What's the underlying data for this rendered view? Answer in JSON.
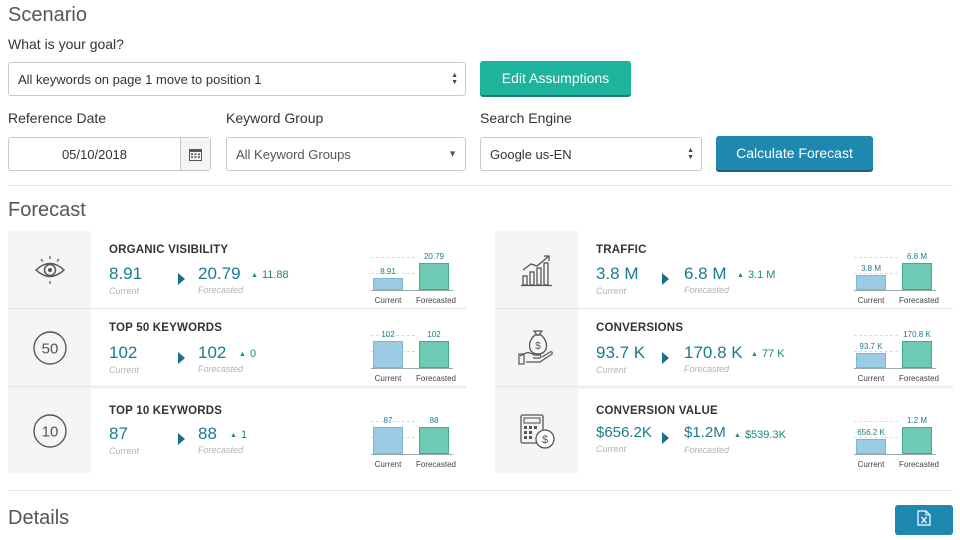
{
  "scenario": {
    "title": "Scenario",
    "goal_label": "What is your goal?",
    "goal_value": "All keywords on page 1 move to position 1",
    "edit_button": "Edit Assumptions",
    "ref_date_label": "Reference Date",
    "ref_date_value": "05/10/2018",
    "keyword_group_label": "Keyword Group",
    "keyword_group_value": "All Keyword Groups",
    "search_engine_label": "Search Engine",
    "search_engine_value": "Google us-EN",
    "calc_button": "Calculate Forecast"
  },
  "forecast": {
    "title": "Forecast",
    "current_label": "Current",
    "forecasted_label": "Forecasted",
    "axis_current": "Current",
    "axis_forecasted": "Forecasted",
    "metrics_left": [
      {
        "name": "ORGANIC VISIBILITY",
        "icon": "eye-icon",
        "current": "8.91",
        "forecasted": "20.79",
        "delta": "11.88",
        "bar_current_label": "8.91",
        "bar_forecasted_label": "20.79",
        "bar_current_fraction": 0.43,
        "bar_forecasted_fraction": 1.0
      },
      {
        "name": "TOP 50 KEYWORDS",
        "icon": "top-50-icon",
        "icon_text": "50",
        "current": "102",
        "forecasted": "102",
        "delta": "0",
        "bar_current_label": "102",
        "bar_forecasted_label": "102",
        "bar_current_fraction": 1.0,
        "bar_forecasted_fraction": 1.0
      },
      {
        "name": "TOP 10 KEYWORDS",
        "icon": "top-10-icon",
        "icon_text": "10",
        "current": "87",
        "forecasted": "88",
        "delta": "1",
        "bar_current_label": "87",
        "bar_forecasted_label": "88",
        "bar_current_fraction": 0.99,
        "bar_forecasted_fraction": 1.0
      }
    ],
    "metrics_right": [
      {
        "name": "TRAFFIC",
        "icon": "growth-chart-icon",
        "current": "3.8 M",
        "forecasted": "6.8 M",
        "delta": "3.1 M",
        "bar_current_label": "3.8 M",
        "bar_forecasted_label": "6.8 M",
        "bar_current_fraction": 0.56,
        "bar_forecasted_fraction": 1.0
      },
      {
        "name": "CONVERSIONS",
        "icon": "money-bag-hand-icon",
        "current": "93.7 K",
        "forecasted": "170.8 K",
        "delta": "77 K",
        "bar_current_label": "93.7 K",
        "bar_forecasted_label": "170.8 K",
        "bar_current_fraction": 0.55,
        "bar_forecasted_fraction": 1.0
      },
      {
        "name": "CONVERSION VALUE",
        "icon": "calculator-coin-icon",
        "current": "$656.2K",
        "forecasted": "$1.2M",
        "delta": "$539.3K",
        "bar_current_label": "656.2 K",
        "bar_forecasted_label": "1.2 M",
        "bar_current_fraction": 0.55,
        "bar_forecasted_fraction": 1.0
      }
    ]
  },
  "details": {
    "title": "Details",
    "export_icon": "excel-export-icon"
  },
  "colors": {
    "teal_button": "#1db39c",
    "blue_button": "#1f88b0",
    "value_text": "#1b7a93",
    "bar_current": "#9bcce3",
    "bar_forecasted": "#6fcab5"
  }
}
